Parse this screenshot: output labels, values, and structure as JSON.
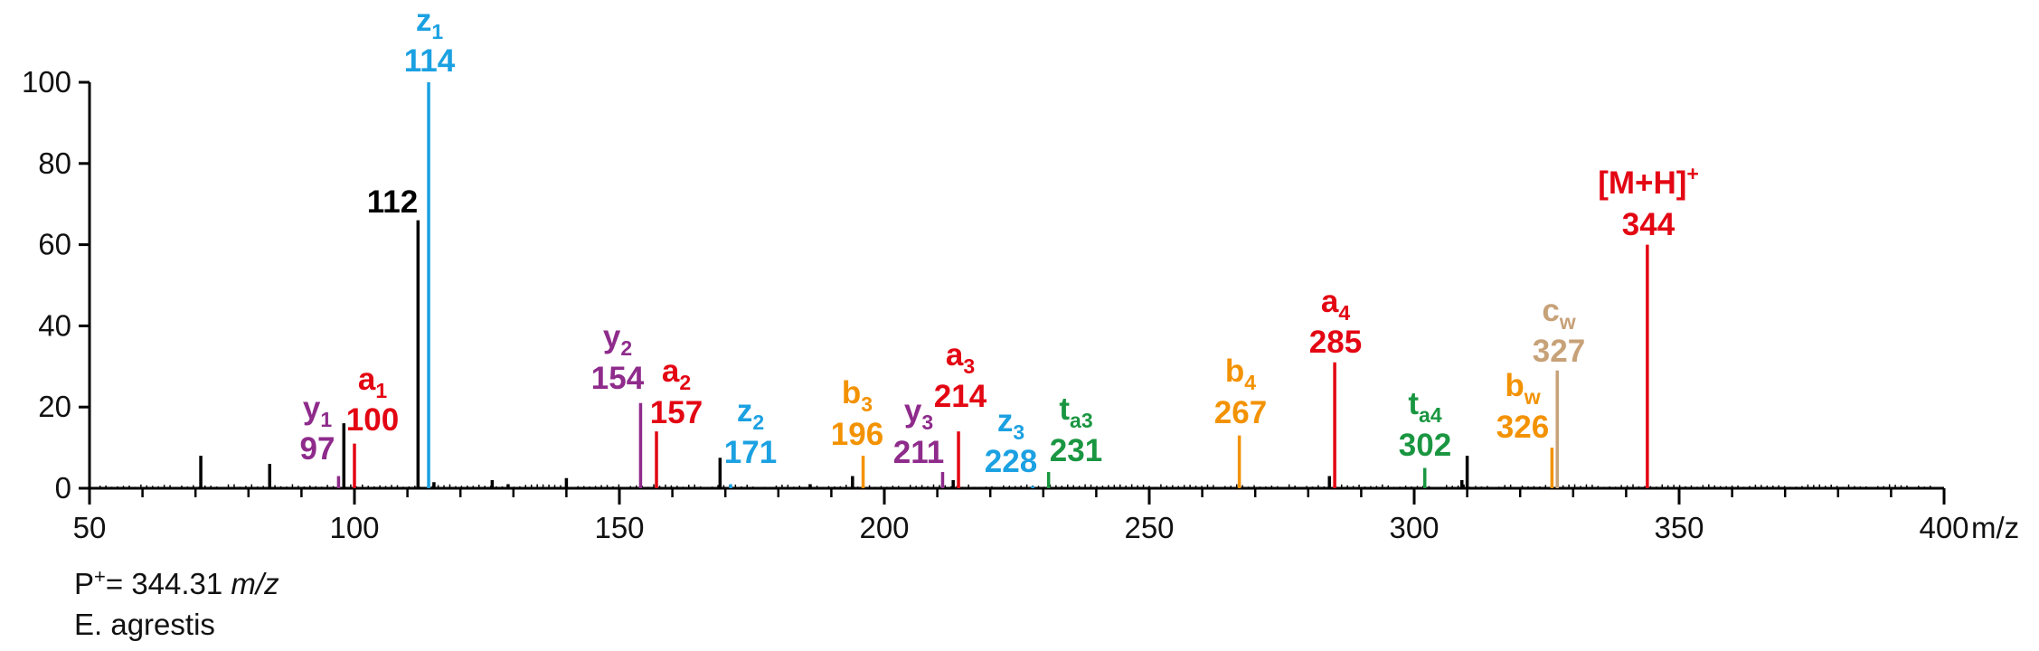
{
  "chart_data": {
    "type": "bar",
    "xlim": [
      50,
      400
    ],
    "ylim": [
      0,
      100
    ],
    "x_ticks": [
      50,
      100,
      150,
      200,
      250,
      300,
      350,
      400
    ],
    "y_ticks": [
      0,
      20,
      40,
      60,
      80,
      100
    ],
    "xlabel": "m/z",
    "grid": false,
    "colors": {
      "unassigned": "#000000",
      "a": "#e30613",
      "y": "#8e2b8b",
      "z": "#1ba1e2",
      "b": "#f39200",
      "t": "#1a9641",
      "c": "#c7a178",
      "precursor": "#e30613"
    },
    "annotated_peaks": [
      {
        "mz": 97,
        "intensity": 3,
        "series": "y",
        "ion": "y",
        "sub": "1",
        "label": "97"
      },
      {
        "mz": 100,
        "intensity": 11,
        "series": "a",
        "ion": "a",
        "sub": "1",
        "label": "100"
      },
      {
        "mz": 112,
        "intensity": 66,
        "series": "unassigned",
        "ion": "",
        "sub": "",
        "label": "112"
      },
      {
        "mz": 114,
        "intensity": 100,
        "series": "z",
        "ion": "z",
        "sub": "1",
        "label": "114"
      },
      {
        "mz": 154,
        "intensity": 21,
        "series": "y",
        "ion": "y",
        "sub": "2",
        "label": "154"
      },
      {
        "mz": 157,
        "intensity": 14,
        "series": "a",
        "ion": "a",
        "sub": "2",
        "label": "157"
      },
      {
        "mz": 171,
        "intensity": 1,
        "series": "z",
        "ion": "z",
        "sub": "2",
        "label": "171"
      },
      {
        "mz": 196,
        "intensity": 8,
        "series": "b",
        "ion": "b",
        "sub": "3",
        "label": "196"
      },
      {
        "mz": 211,
        "intensity": 4,
        "series": "y",
        "ion": "y",
        "sub": "3",
        "label": "211"
      },
      {
        "mz": 214,
        "intensity": 14,
        "series": "a",
        "ion": "a",
        "sub": "3",
        "label": "214"
      },
      {
        "mz": 228,
        "intensity": 0.5,
        "series": "z",
        "ion": "z",
        "sub": "3",
        "label": "228"
      },
      {
        "mz": 231,
        "intensity": 4,
        "series": "t",
        "ion": "t",
        "sub": "a3",
        "label": "231"
      },
      {
        "mz": 267,
        "intensity": 13,
        "series": "b",
        "ion": "b",
        "sub": "4",
        "label": "267"
      },
      {
        "mz": 285,
        "intensity": 31,
        "series": "a",
        "ion": "a",
        "sub": "4",
        "label": "285"
      },
      {
        "mz": 302,
        "intensity": 5,
        "series": "t",
        "ion": "t",
        "sub": "a4",
        "label": "302"
      },
      {
        "mz": 326,
        "intensity": 10,
        "series": "b",
        "ion": "b",
        "sub": "w",
        "label": "326"
      },
      {
        "mz": 327,
        "intensity": 29,
        "series": "c",
        "ion": "c",
        "sub": "w",
        "label": "327"
      },
      {
        "mz": 344,
        "intensity": 60,
        "series": "precursor",
        "ion": "[M+H]",
        "sup": "+",
        "sub": "",
        "label": "344"
      }
    ],
    "other_peaks": [
      {
        "mz": 71,
        "intensity": 8
      },
      {
        "mz": 84,
        "intensity": 6
      },
      {
        "mz": 98,
        "intensity": 16
      },
      {
        "mz": 115,
        "intensity": 1.5
      },
      {
        "mz": 126,
        "intensity": 2
      },
      {
        "mz": 129,
        "intensity": 1
      },
      {
        "mz": 140,
        "intensity": 2.5
      },
      {
        "mz": 169,
        "intensity": 7.5
      },
      {
        "mz": 186,
        "intensity": 1
      },
      {
        "mz": 194,
        "intensity": 3
      },
      {
        "mz": 213,
        "intensity": 2
      },
      {
        "mz": 284,
        "intensity": 3
      },
      {
        "mz": 309,
        "intensity": 2
      },
      {
        "mz": 310,
        "intensity": 8
      }
    ]
  },
  "footnote": {
    "prefix": "P",
    "sup": "+",
    "eq": "= 344.31 ",
    "unit": "m/z",
    "species": "E. agrestis"
  }
}
